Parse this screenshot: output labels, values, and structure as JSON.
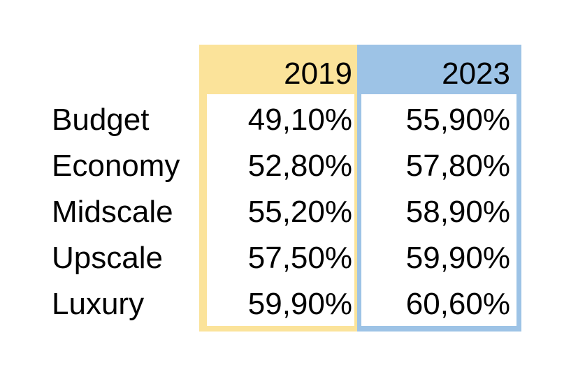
{
  "colors": {
    "col_2019": "#FBE39A",
    "col_2023": "#9DC3E6"
  },
  "chart_data": {
    "type": "table",
    "columns": [
      "2019",
      "2023"
    ],
    "rows": [
      {
        "label": "Budget",
        "values": [
          "49,10%",
          "55,90%"
        ]
      },
      {
        "label": "Economy",
        "values": [
          "52,80%",
          "57,80%"
        ]
      },
      {
        "label": "Midscale",
        "values": [
          "55,20%",
          "58,90%"
        ]
      },
      {
        "label": "Upscale",
        "values": [
          "57,50%",
          "59,90%"
        ]
      },
      {
        "label": "Luxury",
        "values": [
          "59,90%",
          "60,60%"
        ]
      }
    ]
  }
}
